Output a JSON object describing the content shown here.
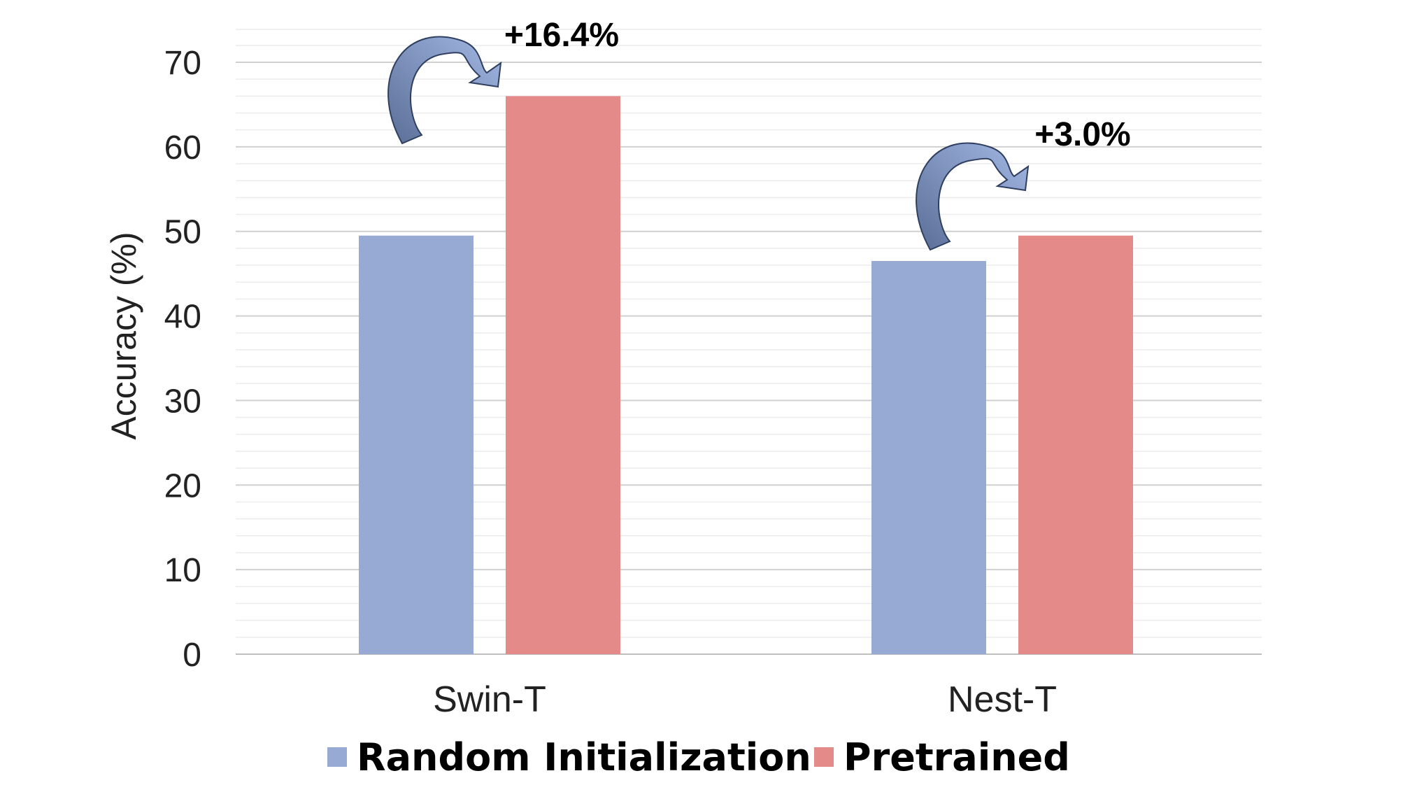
{
  "chart_data": {
    "type": "bar",
    "categories": [
      "Swin-T",
      "Nest-T"
    ],
    "series": [
      {
        "name": "Random Initialization",
        "values": [
          49.5,
          46.5
        ],
        "color": "#96AAD4"
      },
      {
        "name": "Pretrained",
        "values": [
          66.0,
          49.5
        ],
        "color": "#E48B89"
      }
    ],
    "title": "",
    "xlabel": "",
    "ylabel": "Accuracy (%)",
    "ylim": [
      0,
      70
    ],
    "yticks": [
      "0",
      "10",
      "20",
      "30",
      "40",
      "50",
      "60",
      "70"
    ],
    "grid": true,
    "legend": "bottom",
    "annotations": [
      {
        "text": "+16.4%",
        "category": "Swin-T"
      },
      {
        "text": "+3.0%",
        "category": "Nest-T"
      }
    ],
    "arrow_color": "#8FA6D6"
  }
}
